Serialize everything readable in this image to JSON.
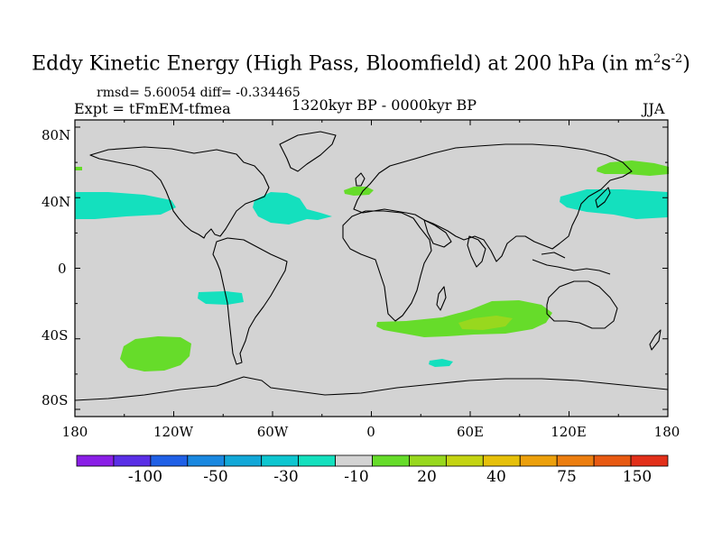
{
  "figure": {
    "title_main": "Eddy Kinetic Energy (High Pass, Bloomfield) at 200 hPa (in m",
    "title_sup1": "2",
    "title_mid": "s",
    "title_sup2": "-2",
    "title_close": ")",
    "stats": "rmsd= 5.60054 diff= -0.334465",
    "experiment": "Expt = tFmEM-tfmea",
    "period": "1320kyr BP - 0000kyr BP",
    "season": "JJA"
  },
  "map": {
    "lat_ticks": [
      "80N",
      "40N",
      "0",
      "40S",
      "80S"
    ],
    "lon_ticks": [
      "180",
      "120W",
      "60W",
      "0",
      "60E",
      "120E",
      "180"
    ],
    "background_color": "#d3d3d3"
  },
  "colorbar": {
    "colors": [
      "#8a1fe6",
      "#5a2fe6",
      "#2060e6",
      "#1a88e0",
      "#12a8d8",
      "#0ec6d0",
      "#14e0be",
      "#d3d3d3",
      "#66dc2a",
      "#98d81e",
      "#c4d412",
      "#e6c00a",
      "#eca00c",
      "#ec7e10",
      "#e85a12",
      "#e2301a"
    ],
    "labels": [
      "-100",
      "-50",
      "-30",
      "-10",
      "20",
      "40",
      "75",
      "150"
    ]
  },
  "chart_data": {
    "type": "heatmap",
    "variable": "Eddy Kinetic Energy difference (high pass), 200 hPa, JJA",
    "units": "m2 s-2",
    "lon_range": [
      -180,
      180
    ],
    "lat_range": [
      -90,
      90
    ],
    "regions": [
      {
        "name": "North Pacific (east)",
        "level": "-10",
        "color": "#14e0be"
      },
      {
        "name": "North Atlantic",
        "level": "-10",
        "color": "#14e0be"
      },
      {
        "name": "West Pacific / Japan",
        "level": "-10",
        "color": "#14e0be"
      },
      {
        "name": "South Pacific subtropics",
        "level": "-10",
        "color": "#14e0be"
      },
      {
        "name": "Southern Ocean south of Africa (small patch)",
        "level": "-10",
        "color": "#14e0be"
      },
      {
        "name": "Europe / Bay of Biscay",
        "level": "20",
        "color": "#66dc2a"
      },
      {
        "name": "North Pacific (Kamchatka)",
        "level": "20",
        "color": "#66dc2a"
      },
      {
        "name": "South Indian Ocean",
        "level": "20",
        "color": "#66dc2a"
      },
      {
        "name": "South Indian Ocean core",
        "level": "40",
        "color": "#98d81e"
      },
      {
        "name": "South Pacific (southeast)",
        "level": "20",
        "color": "#66dc2a"
      },
      {
        "name": "North Pacific western edge",
        "level": "20",
        "color": "#66dc2a"
      }
    ]
  }
}
